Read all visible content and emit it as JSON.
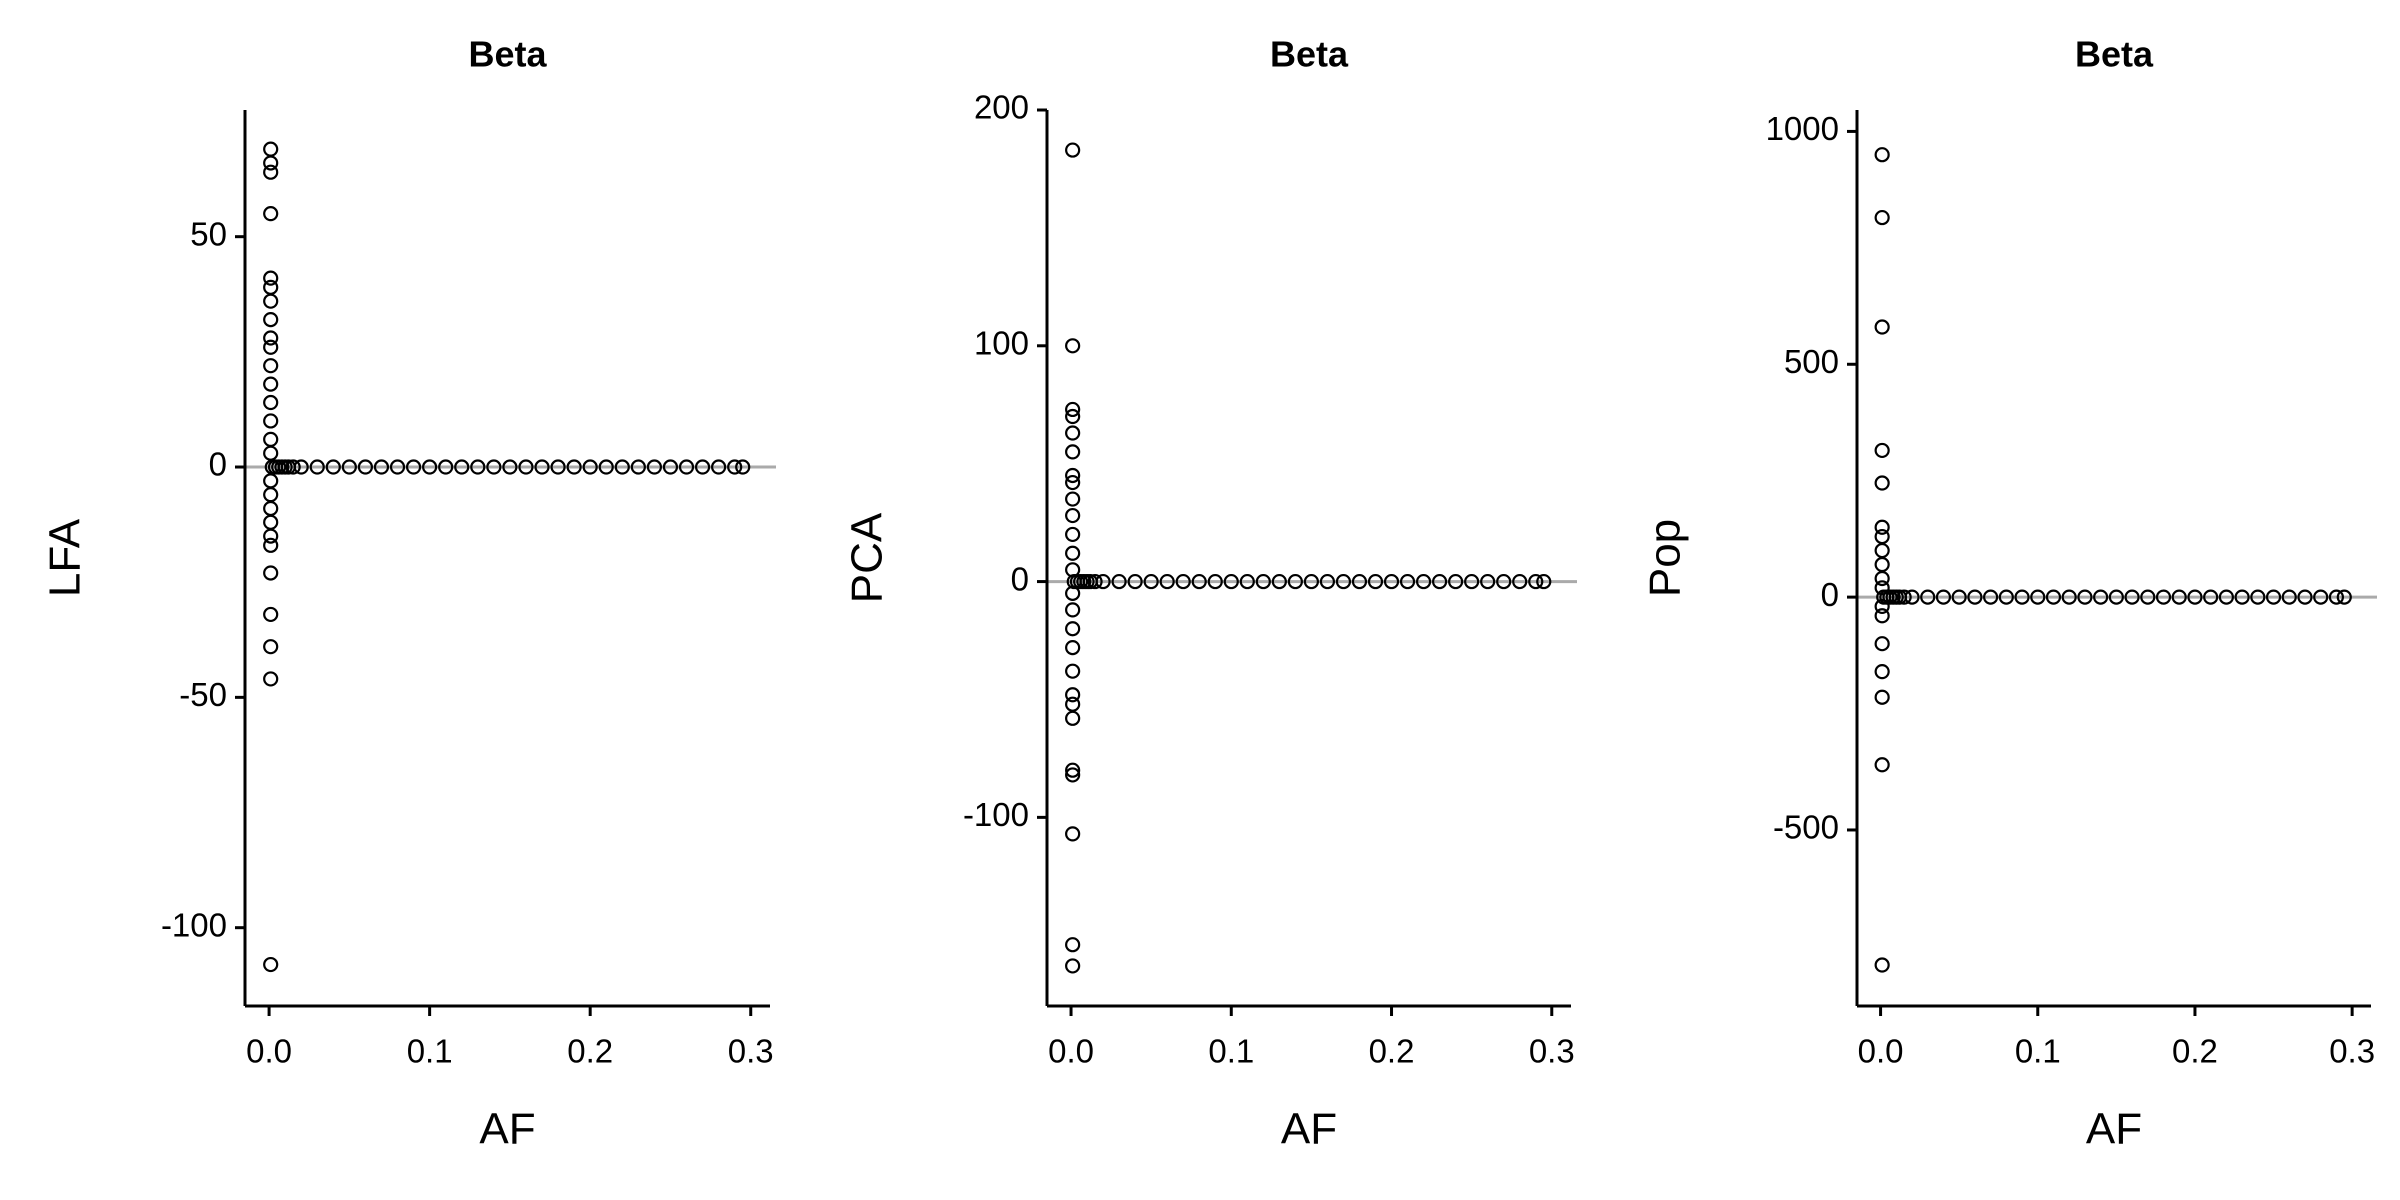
{
  "chart_data": [
    {
      "type": "scatter",
      "title": "Beta",
      "x_label": "AF",
      "y_label": "LFA",
      "x": [
        0.001,
        0.001,
        0.001,
        0.001,
        0.001,
        0.001,
        0.001,
        0.001,
        0.001,
        0.001,
        0.001,
        0.001,
        0.001,
        0.001,
        0.001,
        0.001,
        0.001,
        0.001,
        0.001,
        0.001,
        0.001,
        0.001,
        0.001,
        0.001,
        0.001,
        0.001,
        0.001,
        0.002,
        0.004,
        0.006,
        0.008,
        0.01,
        0.012,
        0.015,
        0.02,
        0.03,
        0.04,
        0.05,
        0.06,
        0.07,
        0.08,
        0.09,
        0.1,
        0.11,
        0.12,
        0.13,
        0.14,
        0.15,
        0.16,
        0.17,
        0.18,
        0.19,
        0.2,
        0.21,
        0.22,
        0.23,
        0.24,
        0.25,
        0.26,
        0.27,
        0.28,
        0.29,
        0.295
      ],
      "y": [
        69,
        66,
        64,
        55,
        41,
        39,
        36,
        32,
        28,
        26,
        22,
        18,
        14,
        10,
        6,
        3,
        -3,
        -6,
        -9,
        -12,
        -15,
        -17,
        -23,
        -32,
        -39,
        -46,
        -108,
        0,
        0,
        0,
        0,
        0,
        0,
        0,
        0,
        0,
        0,
        0,
        0,
        0,
        0,
        0,
        0,
        0,
        0,
        0,
        0,
        0,
        0,
        0,
        0,
        0,
        0,
        0,
        0,
        0,
        0,
        0,
        0,
        0,
        0,
        0,
        0
      ],
      "xlim": [
        -0.015,
        0.312
      ],
      "ylim": [
        -117,
        77.5
      ],
      "xticks": [
        {
          "value": 0,
          "label": "0.0"
        },
        0.1,
        0.2,
        0.3
      ],
      "yticks": [
        -100,
        -50,
        0,
        50
      ],
      "reference_line": 0,
      "color": "#000000"
    },
    {
      "type": "scatter",
      "title": "Beta",
      "x_label": "AF",
      "y_label": "PCA",
      "x": [
        0.001,
        0.001,
        0.001,
        0.001,
        0.001,
        0.001,
        0.001,
        0.001,
        0.001,
        0.001,
        0.001,
        0.001,
        0.001,
        0.001,
        0.001,
        0.001,
        0.001,
        0.001,
        0.001,
        0.001,
        0.001,
        0.001,
        0.001,
        0.001,
        0.001,
        0.001,
        0.002,
        0.004,
        0.006,
        0.008,
        0.01,
        0.012,
        0.015,
        0.02,
        0.03,
        0.04,
        0.05,
        0.06,
        0.07,
        0.08,
        0.09,
        0.1,
        0.11,
        0.12,
        0.13,
        0.14,
        0.15,
        0.16,
        0.17,
        0.18,
        0.19,
        0.2,
        0.21,
        0.22,
        0.23,
        0.24,
        0.25,
        0.26,
        0.27,
        0.28,
        0.29,
        0.295
      ],
      "y": [
        183,
        100,
        73,
        70,
        63,
        55,
        45,
        42,
        35,
        28,
        20,
        12,
        5,
        -5,
        -12,
        -20,
        -28,
        -38,
        -48,
        -52,
        -58,
        -80,
        -82,
        -107,
        -154,
        -163,
        0,
        0,
        0,
        0,
        0,
        0,
        0,
        0,
        0,
        0,
        0,
        0,
        0,
        0,
        0,
        0,
        0,
        0,
        0,
        0,
        0,
        0,
        0,
        0,
        0,
        0,
        0,
        0,
        0,
        0,
        0,
        0,
        0,
        0,
        0,
        0
      ],
      "xlim": [
        -0.015,
        0.312
      ],
      "ylim": [
        -180,
        200
      ],
      "xticks": [
        {
          "value": 0,
          "label": "0.0"
        },
        0.1,
        0.2,
        0.3
      ],
      "yticks": [
        -100,
        0,
        100,
        200
      ],
      "reference_line": 0,
      "color": "#000000"
    },
    {
      "type": "scatter",
      "title": "Beta",
      "x_label": "AF",
      "y_label": "Pop",
      "x": [
        0.001,
        0.001,
        0.001,
        0.001,
        0.001,
        0.001,
        0.001,
        0.001,
        0.001,
        0.001,
        0.001,
        0.001,
        0.001,
        0.001,
        0.001,
        0.001,
        0.001,
        0.001,
        0.002,
        0.004,
        0.006,
        0.008,
        0.01,
        0.012,
        0.015,
        0.02,
        0.03,
        0.04,
        0.05,
        0.06,
        0.07,
        0.08,
        0.09,
        0.1,
        0.11,
        0.12,
        0.13,
        0.14,
        0.15,
        0.16,
        0.17,
        0.18,
        0.19,
        0.2,
        0.21,
        0.22,
        0.23,
        0.24,
        0.25,
        0.26,
        0.27,
        0.28,
        0.29,
        0.295
      ],
      "y": [
        950,
        815,
        580,
        315,
        245,
        150,
        130,
        100,
        70,
        40,
        20,
        -20,
        -40,
        -100,
        -160,
        -215,
        -360,
        -790,
        0,
        0,
        0,
        0,
        0,
        0,
        0,
        0,
        0,
        0,
        0,
        0,
        0,
        0,
        0,
        0,
        0,
        0,
        0,
        0,
        0,
        0,
        0,
        0,
        0,
        0,
        0,
        0,
        0,
        0,
        0,
        0,
        0,
        0,
        0,
        0
      ],
      "xlim": [
        -0.015,
        0.312
      ],
      "ylim": [
        -878,
        1046
      ],
      "xticks": [
        {
          "value": 0,
          "label": "0.0"
        },
        0.1,
        0.2,
        0.3
      ],
      "yticks": [
        -500,
        0,
        500,
        1000
      ],
      "reference_line": 0,
      "color": "#000000"
    }
  ]
}
